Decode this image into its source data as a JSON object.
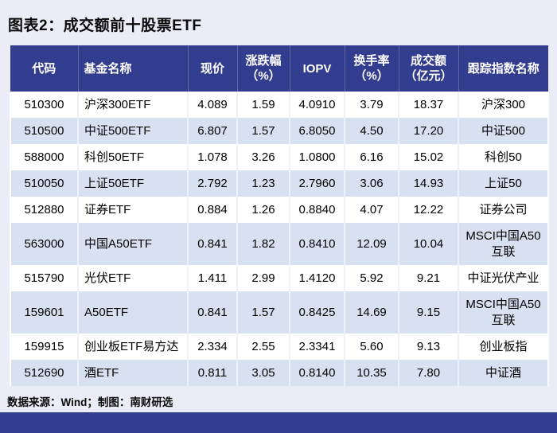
{
  "page": {
    "title": "图表2：成交额前十股票ETF",
    "footer": "数据来源：Wind；制图：南财研选"
  },
  "colors": {
    "background": "#ebecf5",
    "header_navy": "#333d8f",
    "row_alt_blue": "#d7e1f1",
    "row_white": "#ffffff",
    "bottom_bar_navy": "#333d8f",
    "text": "#000000"
  },
  "table": {
    "header_lines": [
      [
        "代码"
      ],
      [
        "基金名称"
      ],
      [
        "现价"
      ],
      [
        "涨跌幅",
        "（%）"
      ],
      [
        "IOPV"
      ],
      [
        "换手率",
        "（%）"
      ],
      [
        "成交额",
        "（亿元）"
      ],
      [
        "跟踪指数名称"
      ]
    ]
  },
  "chart_data": {
    "type": "table",
    "title": "图表2：成交额前十股票ETF",
    "columns": [
      "代码",
      "基金名称",
      "现价",
      "涨跌幅（%）",
      "IOPV",
      "换手率（%）",
      "成交额（亿元）",
      "跟踪指数名称"
    ],
    "rows": [
      [
        "510300",
        "沪深300ETF",
        "4.089",
        "1.59",
        "4.0910",
        "3.79",
        "18.37",
        "沪深300"
      ],
      [
        "510500",
        "中证500ETF",
        "6.807",
        "1.57",
        "6.8050",
        "4.50",
        "17.20",
        "中证500"
      ],
      [
        "588000",
        "科创50ETF",
        "1.078",
        "3.26",
        "1.0800",
        "6.16",
        "15.02",
        "科创50"
      ],
      [
        "510050",
        "上证50ETF",
        "2.792",
        "1.23",
        "2.7960",
        "3.06",
        "14.93",
        "上证50"
      ],
      [
        "512880",
        "证券ETF",
        "0.884",
        "1.26",
        "0.8840",
        "4.07",
        "12.22",
        "证券公司"
      ],
      [
        "563000",
        "中国A50ETF",
        "0.841",
        "1.82",
        "0.8410",
        "12.09",
        "10.04",
        "MSCI中国A50互联"
      ],
      [
        "515790",
        "光伏ETF",
        "1.411",
        "2.99",
        "1.4120",
        "5.92",
        "9.21",
        "中证光伏产业"
      ],
      [
        "159601",
        "A50ETF",
        "0.841",
        "1.57",
        "0.8425",
        "14.69",
        "9.15",
        "MSCI中国A50互联"
      ],
      [
        "159915",
        "创业板ETF易方达",
        "2.334",
        "2.55",
        "2.3341",
        "5.60",
        "9.13",
        "创业板指"
      ],
      [
        "512690",
        "酒ETF",
        "0.811",
        "3.05",
        "0.8140",
        "10.35",
        "7.80",
        "中证酒"
      ]
    ],
    "source_note": "数据来源：Wind；制图：南财研选"
  }
}
